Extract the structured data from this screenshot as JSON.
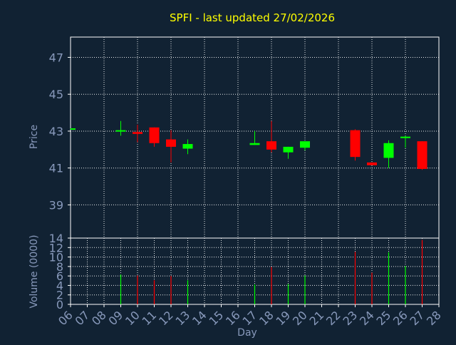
{
  "colors": {
    "background": "#112233",
    "plot_border": "#ffffff",
    "grid": "#ffffff",
    "title": "#ffff00",
    "axis_text": "#8899bb",
    "up": "#00ff00",
    "down": "#ff0000"
  },
  "chart_data": [
    {
      "type": "candlestick",
      "title": "SPFI - last updated 27/02/2026",
      "ylabel": "Price",
      "ylim": [
        37.2,
        48.1
      ],
      "yticks": [
        39,
        41,
        43,
        45,
        47
      ],
      "x_categories": [
        "06",
        "07",
        "08",
        "09",
        "10",
        "11",
        "12",
        "13",
        "14",
        "15",
        "16",
        "17",
        "18",
        "19",
        "20",
        "21",
        "22",
        "23",
        "24",
        "25",
        "26",
        "27",
        "28"
      ],
      "grid": true,
      "candles": [
        {
          "day": "06",
          "open": 43.1,
          "high": 43.15,
          "low": 43.1,
          "close": 43.15
        },
        {
          "day": "09",
          "open": 43.0,
          "high": 43.55,
          "low": 42.75,
          "close": 43.05
        },
        {
          "day": "10",
          "open": 42.95,
          "high": 43.35,
          "low": 42.4,
          "close": 42.85
        },
        {
          "day": "11",
          "open": 43.2,
          "high": 43.2,
          "low": 42.15,
          "close": 42.35
        },
        {
          "day": "12",
          "open": 42.55,
          "high": 43.05,
          "low": 41.3,
          "close": 42.15
        },
        {
          "day": "13",
          "open": 42.05,
          "high": 42.55,
          "low": 41.75,
          "close": 42.3
        },
        {
          "day": "17",
          "open": 42.25,
          "high": 43.0,
          "low": 42.25,
          "close": 42.35
        },
        {
          "day": "18",
          "open": 42.45,
          "high": 43.55,
          "low": 41.85,
          "close": 42.0
        },
        {
          "day": "19",
          "open": 41.85,
          "high": 42.15,
          "low": 41.5,
          "close": 42.15
        },
        {
          "day": "20",
          "open": 42.1,
          "high": 42.45,
          "low": 41.95,
          "close": 42.45
        },
        {
          "day": "23",
          "open": 43.05,
          "high": 43.1,
          "low": 41.4,
          "close": 41.6
        },
        {
          "day": "24",
          "open": 41.3,
          "high": 41.3,
          "low": 41.15,
          "close": 41.15
        },
        {
          "day": "25",
          "open": 41.55,
          "high": 42.5,
          "low": 41.0,
          "close": 42.35
        },
        {
          "day": "26",
          "open": 42.65,
          "high": 42.75,
          "low": 42.1,
          "close": 42.7
        },
        {
          "day": "27",
          "open": 42.45,
          "high": 42.45,
          "low": 40.9,
          "close": 40.95
        }
      ]
    },
    {
      "type": "bar",
      "ylabel": "Volume (0000)",
      "xlabel": "Day",
      "ylim": [
        0,
        14
      ],
      "yticks": [
        0,
        2,
        4,
        6,
        8,
        10,
        12,
        14
      ],
      "x_categories": [
        "06",
        "07",
        "08",
        "09",
        "10",
        "11",
        "12",
        "13",
        "14",
        "15",
        "16",
        "17",
        "18",
        "19",
        "20",
        "21",
        "22",
        "23",
        "24",
        "25",
        "26",
        "27",
        "28"
      ],
      "grid": true,
      "bars": [
        {
          "day": "09",
          "value": 6.3,
          "direction": "up"
        },
        {
          "day": "10",
          "value": 6.1,
          "direction": "down"
        },
        {
          "day": "11",
          "value": 5.1,
          "direction": "down"
        },
        {
          "day": "12",
          "value": 6.0,
          "direction": "down"
        },
        {
          "day": "13",
          "value": 5.1,
          "direction": "up"
        },
        {
          "day": "17",
          "value": 4.2,
          "direction": "up"
        },
        {
          "day": "18",
          "value": 7.9,
          "direction": "down"
        },
        {
          "day": "19",
          "value": 4.3,
          "direction": "up"
        },
        {
          "day": "20",
          "value": 6.1,
          "direction": "up"
        },
        {
          "day": "23",
          "value": 11.1,
          "direction": "down"
        },
        {
          "day": "24",
          "value": 6.7,
          "direction": "down"
        },
        {
          "day": "25",
          "value": 11.0,
          "direction": "up"
        },
        {
          "day": "26",
          "value": 8.1,
          "direction": "up"
        },
        {
          "day": "27",
          "value": 13.6,
          "direction": "down"
        }
      ]
    }
  ]
}
